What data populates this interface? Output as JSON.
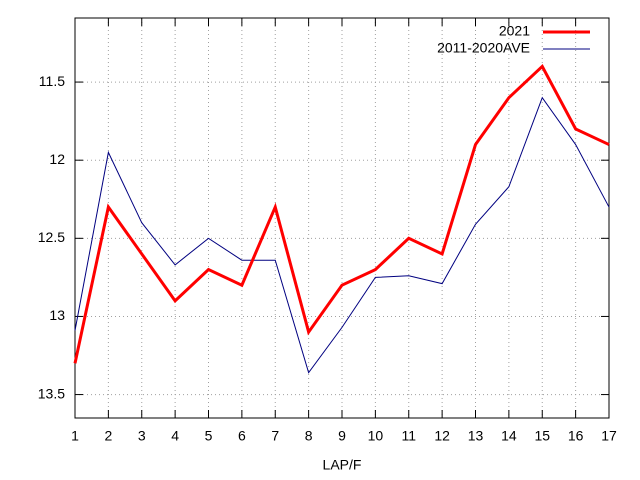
{
  "chart_data": {
    "type": "line",
    "x_label": "LAP/F",
    "x": [
      1,
      2,
      3,
      4,
      5,
      6,
      7,
      8,
      9,
      10,
      11,
      12,
      13,
      14,
      15,
      16,
      17
    ],
    "xlim": [
      1,
      17
    ],
    "xticks": [
      1,
      2,
      3,
      4,
      5,
      6,
      7,
      8,
      9,
      10,
      11,
      12,
      13,
      14,
      15,
      16,
      17
    ],
    "ylim": [
      11.09,
      13.65
    ],
    "yticks": [
      11.5,
      12,
      12.5,
      13,
      13.5
    ],
    "y_reversed": true,
    "grid": true,
    "legend_position": "top-right",
    "series": [
      {
        "name": "2021",
        "color": "#ff0000",
        "line_width": 3,
        "values": [
          13.3,
          12.3,
          12.6,
          12.9,
          12.7,
          12.8,
          12.3,
          13.1,
          12.8,
          12.7,
          12.5,
          12.6,
          11.9,
          11.6,
          11.4,
          11.8,
          11.9
        ]
      },
      {
        "name": "2011-2020AVE",
        "color": "#000080",
        "line_width": 1,
        "values": [
          13.09,
          11.95,
          12.4,
          12.67,
          12.5,
          12.64,
          12.64,
          13.36,
          13.07,
          12.75,
          12.74,
          12.79,
          12.41,
          12.17,
          11.6,
          11.9,
          12.3
        ]
      }
    ]
  }
}
